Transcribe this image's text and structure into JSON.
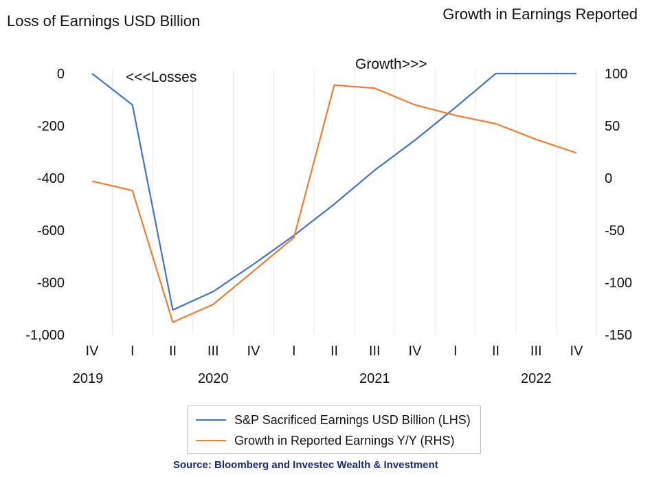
{
  "titles": {
    "left": "Loss of Earnings USD Billion",
    "right": "Growth in Earnings Reported"
  },
  "chart_data": {
    "type": "line",
    "categories": [
      "IV",
      "I",
      "II",
      "III",
      "IV",
      "I",
      "II",
      "III",
      "IV",
      "I",
      "II",
      "III",
      "IV"
    ],
    "years": [
      "2019",
      "2020",
      "2021",
      "2022"
    ],
    "left_axis": {
      "ylim": [
        -1000,
        0
      ],
      "ticks": [
        "0",
        "-200",
        "-400",
        "-600",
        "-800",
        "-1,000"
      ]
    },
    "right_axis": {
      "ylim": [
        -150,
        100
      ],
      "ticks": [
        "100",
        "50",
        "0",
        "-50",
        "-100",
        "-150"
      ]
    },
    "series": [
      {
        "name": "S&P Sacrificed Earnings USD Billion (LHS)",
        "axis": "left",
        "color": "#4472C4",
        "values": [
          0,
          -120,
          -905,
          -835,
          -730,
          -620,
          -500,
          -370,
          -255,
          -130,
          0,
          0,
          0
        ]
      },
      {
        "name": "Growth in Reported Earnings Y/Y (RHS)",
        "axis": "right",
        "color": "#ED7D31",
        "values": [
          -3,
          -12,
          -138,
          -121,
          -89,
          -57,
          89,
          86,
          70,
          60,
          52,
          37,
          24
        ]
      }
    ],
    "annotations": [
      "<<<Losses",
      "Growth>>>"
    ],
    "grid": "vertical"
  },
  "source": "Source: Bloomberg and Investec Wealth & Investment"
}
